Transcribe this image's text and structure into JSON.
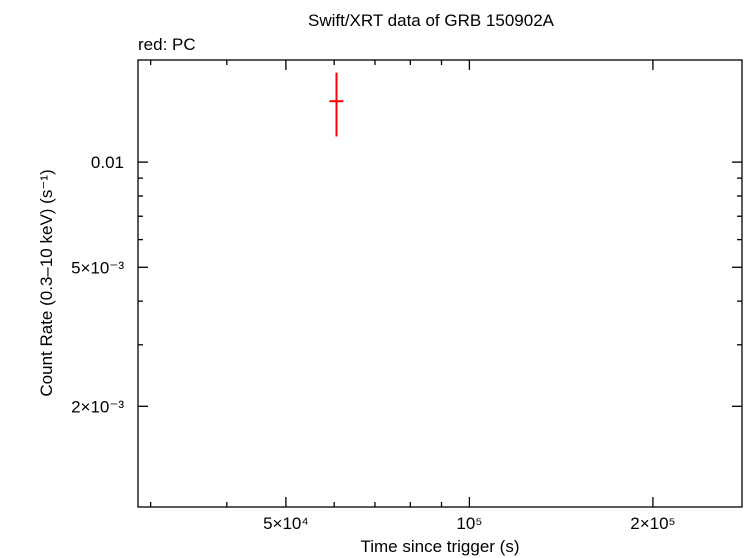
{
  "chart_data": {
    "type": "errorbar",
    "title": "Swift/XRT data of GRB 150902A",
    "annotation": "red: PC",
    "x_label": "Time since trigger (s)",
    "y_label": "Count Rate (0.3–10 keV) (s⁻¹)",
    "x_log": true,
    "y_log": true,
    "xlim": [
      28600,
      280000
    ],
    "ylim": [
      0.00103,
      0.0196
    ],
    "xticks": [
      {
        "value": 50000,
        "label": "5×10⁴"
      },
      {
        "value": 100000,
        "label": "10⁵"
      },
      {
        "value": 200000,
        "label": "2×10⁵"
      }
    ],
    "yticks": [
      {
        "value": 0.002,
        "label": "2×10⁻³"
      },
      {
        "value": 0.005,
        "label": "5×10⁻³"
      },
      0.01
    ],
    "xminor_ticks": [
      30000,
      40000,
      60000,
      70000,
      80000,
      90000
    ],
    "yminor_ticks": [
      0.003,
      0.004,
      0.006,
      0.007,
      0.008,
      0.009
    ],
    "series": [
      {
        "color": "#ff0000",
        "x": [
          60530
        ],
        "x_err": [
          1600
        ],
        "values": [
          0.01494
        ],
        "y_err": [
          0.0031
        ]
      }
    ]
  }
}
